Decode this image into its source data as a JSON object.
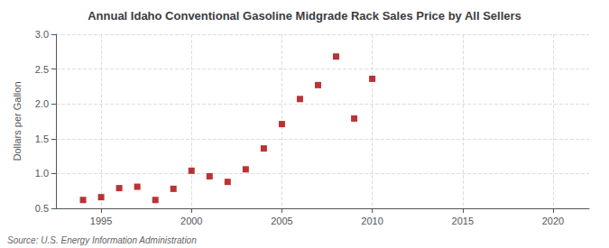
{
  "chart_data": {
    "type": "scatter",
    "title": "Annual Idaho Conventional Gasoline Midgrade Rack Sales Price by All Sellers",
    "ylabel": "Dollars per Gallon",
    "annotation": "Source: U.S. Energy Information Administration",
    "x": [
      1994,
      1995,
      1996,
      1997,
      1998,
      1999,
      2000,
      2001,
      2002,
      2003,
      2004,
      2005,
      2006,
      2007,
      2008,
      2009,
      2010
    ],
    "values": [
      0.62,
      0.66,
      0.79,
      0.81,
      0.62,
      0.78,
      1.04,
      0.96,
      0.88,
      1.06,
      1.36,
      1.71,
      2.07,
      2.27,
      2.68,
      1.79,
      2.36
    ],
    "color": "#aa0000",
    "marker": "square",
    "xlim": [
      1992.5,
      2022
    ],
    "ylim": [
      0.5,
      3.0
    ],
    "xticks": [
      1995,
      2000,
      2005,
      2010,
      2015,
      2020
    ],
    "yticks": [
      0.5,
      {
        "value": 1,
        "label": "1.0"
      },
      1.5,
      {
        "value": 2,
        "label": "2.0"
      },
      2.5,
      {
        "value": 3,
        "label": "3.0"
      }
    ],
    "grid": true
  }
}
